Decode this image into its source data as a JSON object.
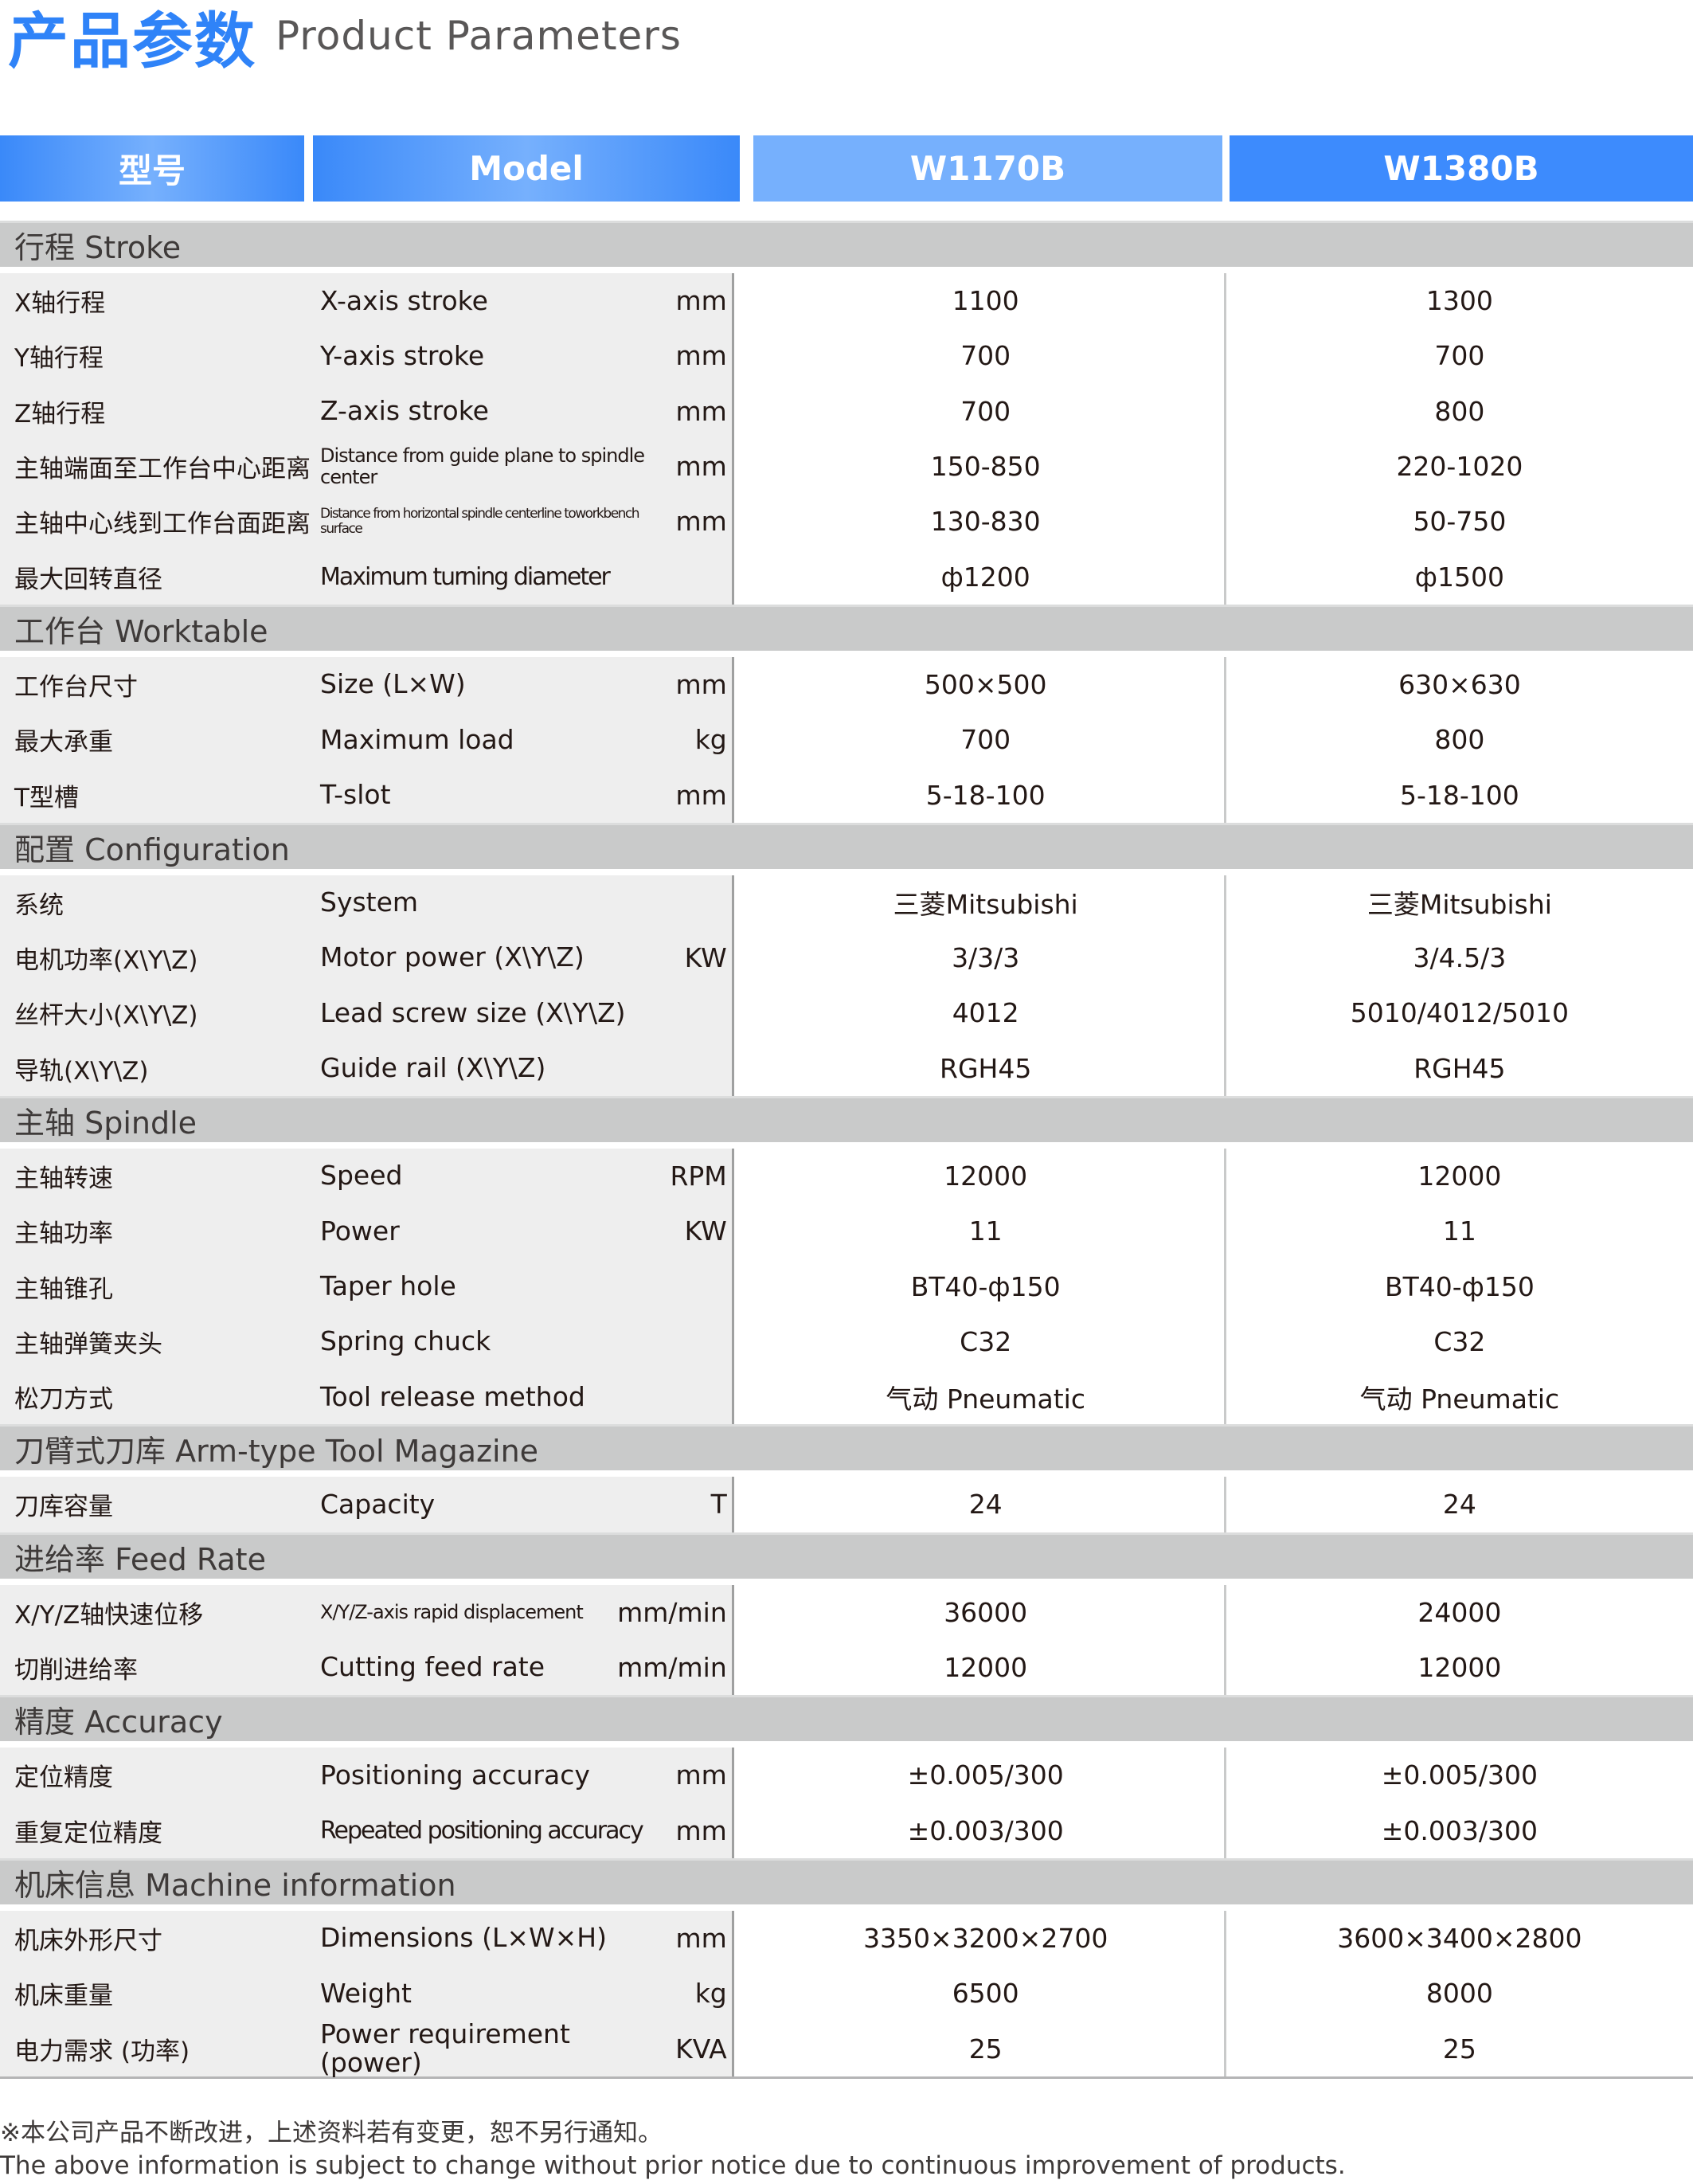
{
  "title": {
    "cn": "产品参数",
    "en": "Product Parameters"
  },
  "colors": {
    "accent": "#2f83f8",
    "header_light": "#76b0fd",
    "header_dark": "#3d8bfd",
    "section_bg": "#c9caca",
    "row_bg": "#eeeeee"
  },
  "header": {
    "col_cn": "型号",
    "col_en": "Model",
    "model1": "W1170B",
    "model2": "W1380B"
  },
  "sections": [
    {
      "title": "行程 Stroke",
      "rows": [
        {
          "cn": "X轴行程",
          "en": "X-axis stroke",
          "unit": "mm",
          "v1": "1100",
          "v2": "1300"
        },
        {
          "cn": "Y轴行程",
          "en": "Y-axis stroke",
          "unit": "mm",
          "v1": "700",
          "v2": "700"
        },
        {
          "cn": "Z轴行程",
          "en": "Z-axis stroke",
          "unit": "mm",
          "v1": "700",
          "v2": "800"
        },
        {
          "cn": "主轴端面至工作台中心距离",
          "en": "Distance from guide plane to spindle center",
          "unit": "mm",
          "v1": "150-850",
          "v2": "220-1020",
          "size": "small"
        },
        {
          "cn": "主轴中心线到工作台面距离",
          "en": "Distance from horizontal spindle centerline toworkbench surface",
          "unit": "mm",
          "v1": "130-830",
          "v2": "50-750",
          "size": "tiny"
        },
        {
          "cn": "最大回转直径",
          "en": "Maximum turning diameter",
          "unit": "",
          "v1": "ф1200",
          "v2": "ф1500",
          "size": "cond"
        }
      ]
    },
    {
      "title": "工作台 Worktable",
      "rows": [
        {
          "cn": "工作台尺寸",
          "en": "Size (L×W)",
          "unit": "mm",
          "v1": "500×500",
          "v2": "630×630"
        },
        {
          "cn": "最大承重",
          "en": "Maximum load",
          "unit": "kg",
          "v1": "700",
          "v2": "800"
        },
        {
          "cn": "T型槽",
          "en": "T-slot",
          "unit": "mm",
          "v1": "5-18-100",
          "v2": "5-18-100"
        }
      ]
    },
    {
      "title": "配置 Configuration",
      "rows": [
        {
          "cn": "系统",
          "en": "System",
          "unit": "",
          "v1": "三菱Mitsubishi",
          "v2": "三菱Mitsubishi"
        },
        {
          "cn": "电机功率(X\\Y\\Z)",
          "en": "Motor power (X\\Y\\Z)",
          "unit": "KW",
          "v1": "3/3/3",
          "v2": "3/4.5/3"
        },
        {
          "cn": "丝杆大小(X\\Y\\Z)",
          "en": "Lead screw size (X\\Y\\Z)",
          "unit": "",
          "v1": "4012",
          "v2": "5010/4012/5010"
        },
        {
          "cn": "导轨(X\\Y\\Z)",
          "en": "Guide rail (X\\Y\\Z)",
          "unit": "",
          "v1": "RGH45",
          "v2": "RGH45"
        }
      ]
    },
    {
      "title": "主轴 Spindle",
      "rows": [
        {
          "cn": "主轴转速",
          "en": "Speed",
          "unit": "RPM",
          "v1": "12000",
          "v2": "12000"
        },
        {
          "cn": "主轴功率",
          "en": "Power",
          "unit": "KW",
          "v1": "11",
          "v2": "11"
        },
        {
          "cn": "主轴锥孔",
          "en": "Taper hole",
          "unit": "",
          "v1": "BT40-ф150",
          "v2": "BT40-ф150"
        },
        {
          "cn": "主轴弹簧夹头",
          "en": "Spring chuck",
          "unit": "",
          "v1": "C32",
          "v2": "C32"
        },
        {
          "cn": "松刀方式",
          "en": "Tool release method",
          "unit": "",
          "v1": "气动 Pneumatic",
          "v2": "气动 Pneumatic"
        }
      ]
    },
    {
      "title": "刀臂式刀库 Arm-type Tool Magazine",
      "rows": [
        {
          "cn": "刀库容量",
          "en": "Capacity",
          "unit": "T",
          "v1": "24",
          "v2": "24"
        }
      ]
    },
    {
      "title": "进给率 Feed Rate",
      "rows": [
        {
          "cn": "X/Y/Z轴快速位移",
          "en": "X/Y/Z-axis rapid displacement",
          "unit": "mm/min",
          "v1": "36000",
          "v2": "24000",
          "size": "small"
        },
        {
          "cn": "切削进给率",
          "en": "Cutting feed rate",
          "unit": "mm/min",
          "v1": "12000",
          "v2": "12000"
        }
      ]
    },
    {
      "title": "精度 Accuracy",
      "rows": [
        {
          "cn": "定位精度",
          "en": "Positioning accuracy",
          "unit": "mm",
          "v1": "±0.005/300",
          "v2": "±0.005/300"
        },
        {
          "cn": "重复定位精度",
          "en": "Repeated positioning accuracy",
          "unit": "mm",
          "v1": "±0.003/300",
          "v2": "±0.003/300",
          "size": "cond"
        }
      ]
    },
    {
      "title": "机床信息 Machine information",
      "rows": [
        {
          "cn": "机床外形尺寸",
          "en": "Dimensions (L×W×H)",
          "unit": "mm",
          "v1": "3350×3200×2700",
          "v2": "3600×3400×2800"
        },
        {
          "cn": "机床重量",
          "en": "Weight",
          "unit": "kg",
          "v1": "6500",
          "v2": "8000"
        },
        {
          "cn": "电力需求 (功率)",
          "en": "Power requirement (power)",
          "unit": "KVA",
          "v1": "25",
          "v2": "25"
        }
      ]
    }
  ],
  "footer": {
    "cn": "※本公司产品不断改进，上述资料若有变更，恕不另行通知。",
    "en": "The above information is subject to change without prior notice due to continuous improvement of products."
  }
}
